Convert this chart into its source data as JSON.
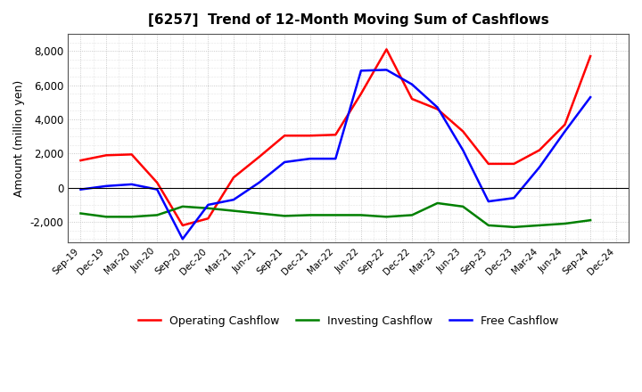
{
  "title": "[6257]  Trend of 12-Month Moving Sum of Cashflows",
  "ylabel": "Amount (million yen)",
  "x_labels": [
    "Sep-19",
    "Dec-19",
    "Mar-20",
    "Jun-20",
    "Sep-20",
    "Dec-20",
    "Mar-21",
    "Jun-21",
    "Sep-21",
    "Dec-21",
    "Mar-22",
    "Jun-22",
    "Sep-22",
    "Dec-22",
    "Mar-23",
    "Jun-23",
    "Sep-23",
    "Dec-23",
    "Mar-24",
    "Jun-24",
    "Sep-24",
    "Dec-24"
  ],
  "operating": [
    1600,
    1900,
    1950,
    300,
    -2200,
    -1800,
    600,
    1800,
    3050,
    3050,
    3100,
    5500,
    8100,
    5200,
    4600,
    3300,
    1400,
    1400,
    2200,
    3700,
    7700,
    null
  ],
  "investing": [
    -1500,
    -1700,
    -1700,
    -1600,
    -1100,
    -1200,
    -1350,
    -1500,
    -1650,
    -1600,
    -1600,
    -1600,
    -1700,
    -1600,
    -900,
    -1100,
    -2200,
    -2300,
    -2200,
    -2100,
    -1900,
    null
  ],
  "free": [
    -100,
    100,
    200,
    -100,
    -3000,
    -1000,
    -700,
    300,
    1500,
    1700,
    1700,
    6850,
    6900,
    6050,
    4700,
    2200,
    -800,
    -600,
    1200,
    3300,
    5300,
    null
  ],
  "operating_color": "#ff0000",
  "investing_color": "#008000",
  "free_color": "#0000ff",
  "background_color": "#ffffff",
  "grid_color": "#aaaaaa",
  "ylim": [
    -3200,
    9000
  ],
  "yticks": [
    -2000,
    0,
    2000,
    4000,
    6000,
    8000
  ],
  "legend_labels": [
    "Operating Cashflow",
    "Investing Cashflow",
    "Free Cashflow"
  ]
}
